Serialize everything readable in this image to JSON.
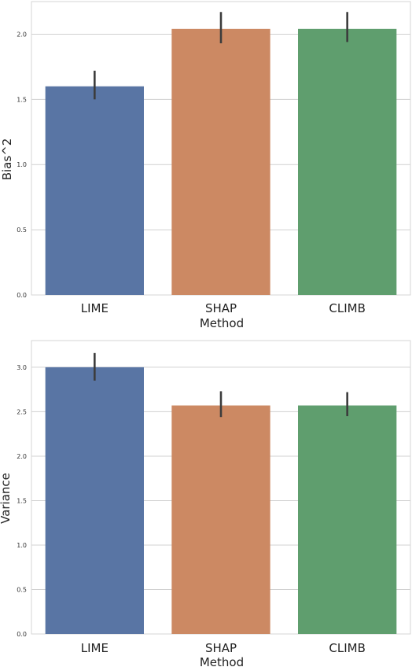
{
  "chart_data": [
    {
      "type": "bar",
      "categories": [
        "LIME",
        "SHAP",
        "CLIMB"
      ],
      "values": [
        1.6,
        2.04,
        2.04
      ],
      "error_low": [
        1.5,
        1.93,
        1.94
      ],
      "error_high": [
        1.72,
        2.17,
        2.17
      ],
      "colors": [
        "#5975a4",
        "#cc8963",
        "#5f9e6e"
      ],
      "yticks": [
        "0.0",
        "0.5",
        "1.0",
        "1.5",
        "2.0"
      ],
      "ytick_values": [
        0,
        0.5,
        1.0,
        1.5,
        2.0
      ],
      "xlabel": "Method",
      "ylabel": "Bias^2",
      "ylim": [
        0,
        2.25
      ],
      "grid": "horizontal"
    },
    {
      "type": "bar",
      "categories": [
        "LIME",
        "SHAP",
        "CLIMB"
      ],
      "values": [
        3.0,
        2.57,
        2.57
      ],
      "error_low": [
        2.85,
        2.44,
        2.45
      ],
      "error_high": [
        3.16,
        2.73,
        2.72
      ],
      "colors": [
        "#5975a4",
        "#cc8963",
        "#5f9e6e"
      ],
      "yticks": [
        "0.0",
        "0.5",
        "1.0",
        "1.5",
        "2.0",
        "2.5",
        "3.0"
      ],
      "ytick_values": [
        0,
        0.5,
        1.0,
        1.5,
        2.0,
        2.5,
        3.0
      ],
      "xlabel": "Method",
      "ylabel": "Variance",
      "ylim": [
        0,
        3.3
      ],
      "grid": "horizontal"
    }
  ]
}
